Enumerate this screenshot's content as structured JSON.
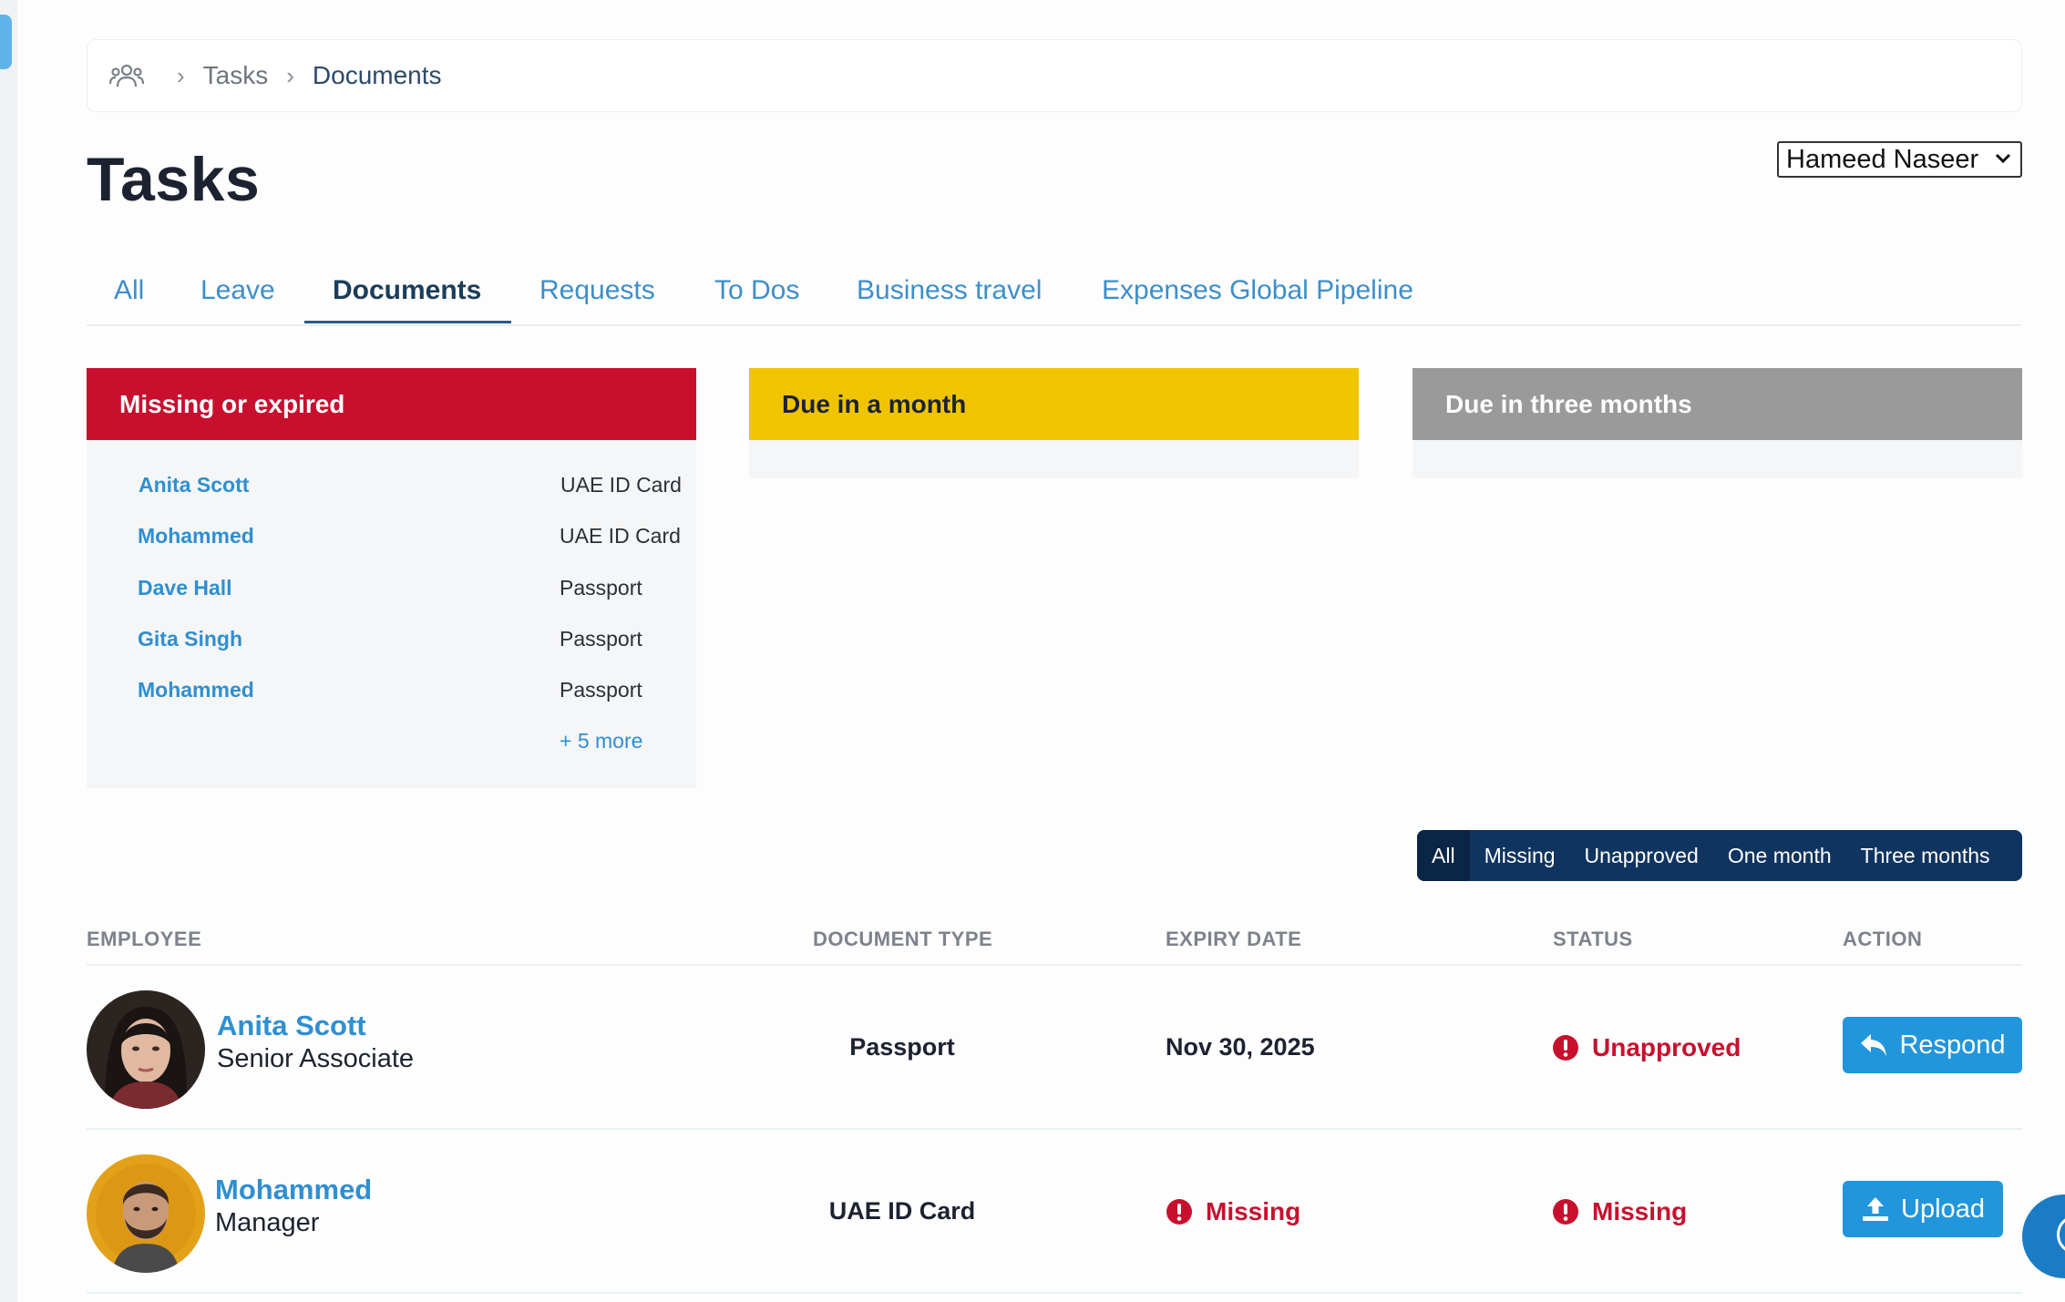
{
  "breadcrumb": {
    "icon": "users-icon",
    "items": [
      "Tasks",
      "Documents"
    ]
  },
  "page": {
    "title": "Tasks"
  },
  "user_select": {
    "selected": "Hameed Naseer"
  },
  "tabs": [
    {
      "label": "All"
    },
    {
      "label": "Leave"
    },
    {
      "label": "Documents",
      "active": true
    },
    {
      "label": "Requests"
    },
    {
      "label": "To Dos"
    },
    {
      "label": "Business travel"
    },
    {
      "label": "Expenses Global Pipeline"
    }
  ],
  "cards": {
    "missing": {
      "title": "Missing or expired",
      "color": "#c8102e",
      "rows": [
        {
          "name": "Anita Scott",
          "doc": "UAE ID Card"
        },
        {
          "name": "Mohammed",
          "doc": "UAE ID Card"
        },
        {
          "name": "Dave Hall",
          "doc": "Passport"
        },
        {
          "name": "Gita Singh",
          "doc": "Passport"
        },
        {
          "name": "Mohammed",
          "doc": "Passport"
        }
      ],
      "more": "+ 5 more"
    },
    "month": {
      "title": "Due in a month",
      "color": "#f0c400"
    },
    "three": {
      "title": "Due in three months",
      "color": "#9a9a9a"
    }
  },
  "filters": [
    {
      "label": "All",
      "active": true
    },
    {
      "label": "Missing"
    },
    {
      "label": "Unapproved"
    },
    {
      "label": "One month"
    },
    {
      "label": "Three months"
    }
  ],
  "table": {
    "headers": {
      "employee": "EMPLOYEE",
      "document_type": "DOCUMENT TYPE",
      "expiry_date": "EXPIRY DATE",
      "status": "STATUS",
      "action": "ACTION"
    },
    "rows": [
      {
        "name": "Anita Scott",
        "role": "Senior Associate",
        "document_type": "Passport",
        "expiry_date": "Nov 30, 2025",
        "status": "Unapproved",
        "action": "Respond",
        "action_icon": "reply-icon"
      },
      {
        "name": "Mohammed",
        "role": "Manager",
        "document_type": "UAE ID Card",
        "expiry_date": "Missing",
        "status": "Missing",
        "action": "Upload",
        "action_icon": "upload-icon"
      }
    ]
  },
  "colors": {
    "accent": "#2196dc",
    "link": "#2f8fd0",
    "danger": "#c8102e",
    "filter_bar": "#0f3460"
  }
}
